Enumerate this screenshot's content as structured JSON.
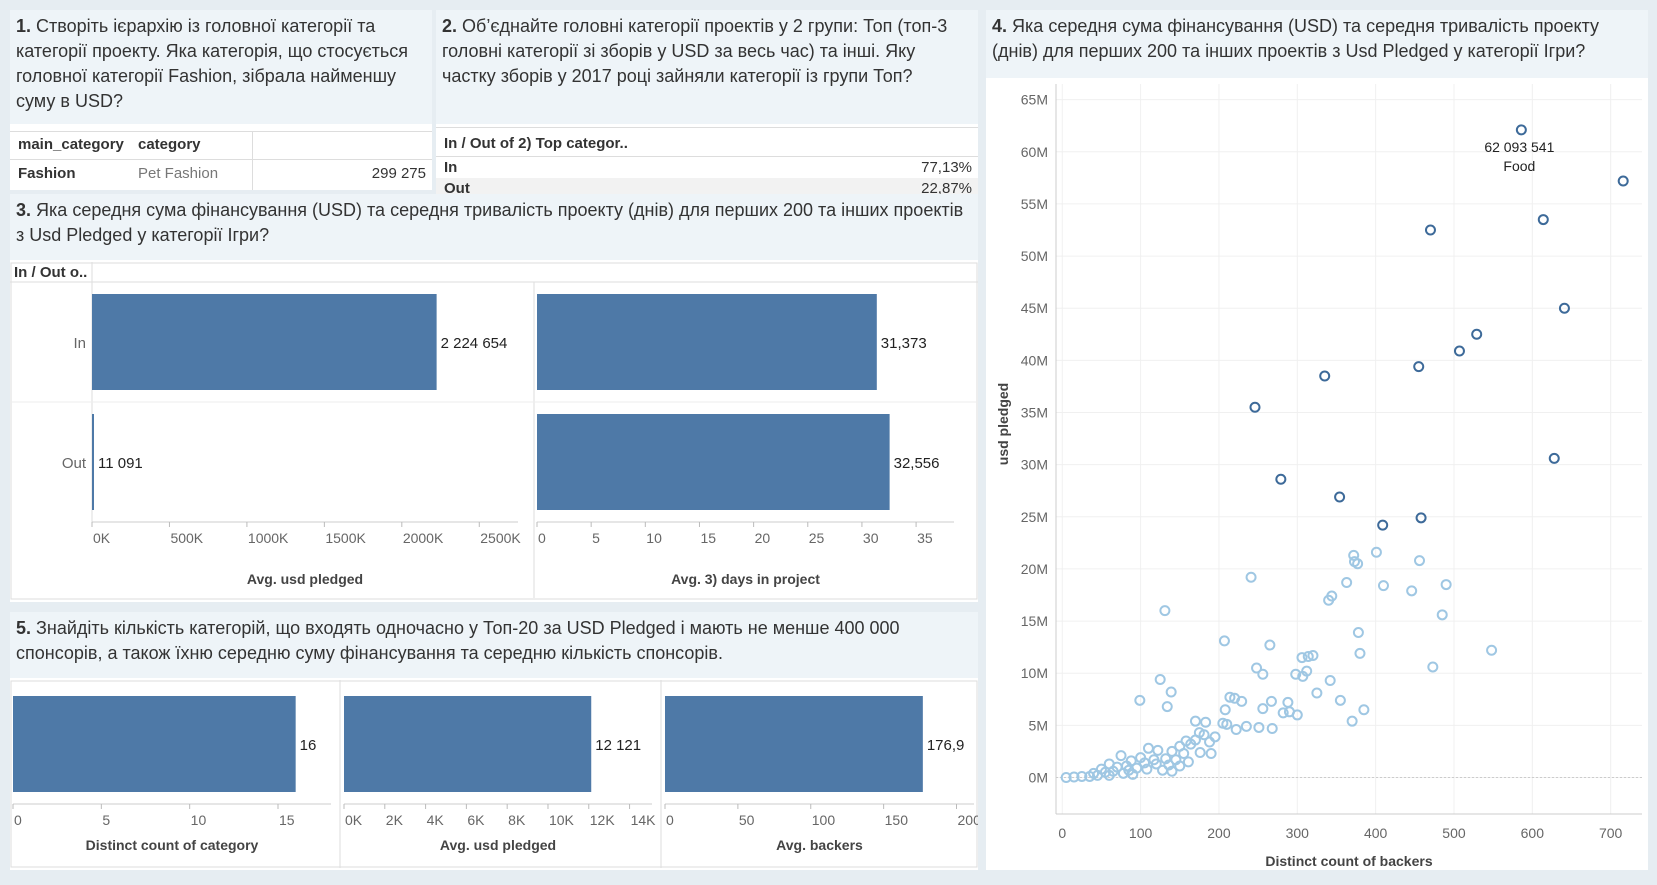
{
  "q1": {
    "num": "1.",
    "text": "Створіть ієрархію із головної категорії та категорії проекту. Яка категорія, що стосується головної категорії Fashion, зібрала найменшу суму в USD?",
    "headers": [
      "main_category",
      "category"
    ],
    "row": {
      "main_category": "Fashion",
      "category": "Pet Fashion",
      "value": "299 275"
    }
  },
  "q2": {
    "num": "2.",
    "text": "Об’єднайте головні категорії проектів у 2 групи: Топ (топ-3 головні категорії зі зборів у USD за весь час) та інші. Яку частку зборів у 2017 році зайняли категорії із групи Топ?",
    "header": "In / Out of 2) Top categor..",
    "rows": [
      {
        "label": "In",
        "value": "77,13%"
      },
      {
        "label": "Out",
        "value": "22,87%"
      }
    ]
  },
  "q3": {
    "num": "3.",
    "text": "Яка середня сума фінансування (USD) та середня тривалість проекту (днів) для перших 200 та інших проектів з Usd Pledged у категорії Ігри?",
    "row_header": "In / Out o.."
  },
  "q4": {
    "num": "4.",
    "text": "Яка середня сума фінансування (USD) та середня тривалість проекту (днів) для перших 200 та інших проектів з Usd Pledged у категорії Ігри?",
    "annotation_value": "62 093 541",
    "annotation_label": "Food"
  },
  "q5": {
    "num": "5.",
    "text": "Знайдіть кількість категорій, що входять одночасно у Топ-20 за USD Pledged і мають не менше 400 000 спонсорів, а також їхню середню суму фінансування та середню кількість спонсорів."
  },
  "colors": {
    "bar": "#4e79a7",
    "dark_point": "#3d6a99",
    "light_point": "#9fc7e3",
    "title_bg": "#eef4f8",
    "page_bg": "#e6edf2"
  },
  "chart_data": [
    {
      "id": "q3_pledged",
      "type": "bar",
      "orientation": "horizontal",
      "categories": [
        "In",
        "Out"
      ],
      "values": [
        2224654,
        11091
      ],
      "value_labels": [
        "2 224 654",
        "11 091"
      ],
      "xlabel": "Avg. usd pledged",
      "xlim": [
        0,
        2750000
      ],
      "ticks": [
        0,
        500000,
        1000000,
        1500000,
        2000000,
        2500000
      ],
      "tick_labels": [
        "0K",
        "500K",
        "1000K",
        "1500K",
        "2000K",
        "2500K"
      ]
    },
    {
      "id": "q3_days",
      "type": "bar",
      "orientation": "horizontal",
      "categories": [
        "In",
        "Out"
      ],
      "values": [
        31.373,
        32.556
      ],
      "value_labels": [
        "31,373",
        "32,556"
      ],
      "xlabel": "Avg. 3) days in project",
      "xlim": [
        0,
        38.5
      ],
      "ticks": [
        0,
        5,
        10,
        15,
        20,
        25,
        30,
        35
      ],
      "tick_labels": [
        "0",
        "5",
        "10",
        "15",
        "20",
        "25",
        "30",
        "35"
      ]
    },
    {
      "id": "q5_count",
      "type": "bar",
      "orientation": "horizontal",
      "values": [
        16
      ],
      "value_labels": [
        "16"
      ],
      "xlabel": "Distinct count of category",
      "xlim": [
        0,
        18
      ],
      "ticks": [
        0,
        5,
        10,
        15
      ],
      "tick_labels": [
        "0",
        "5",
        "10",
        "15"
      ]
    },
    {
      "id": "q5_pledged",
      "type": "bar",
      "orientation": "horizontal",
      "values": [
        12121
      ],
      "value_labels": [
        "12 121"
      ],
      "xlabel": "Avg. usd pledged",
      "xlim": [
        0,
        15100
      ],
      "ticks": [
        0,
        2000,
        4000,
        6000,
        8000,
        10000,
        12000,
        14000
      ],
      "tick_labels": [
        "0K",
        "2K",
        "4K",
        "6K",
        "8K",
        "10K",
        "12K",
        "14K"
      ]
    },
    {
      "id": "q5_backers",
      "type": "bar",
      "orientation": "horizontal",
      "values": [
        176.9
      ],
      "value_labels": [
        "176,9"
      ],
      "xlabel": "Avg. backers",
      "xlim": [
        0,
        212
      ],
      "ticks": [
        0,
        50,
        100,
        150,
        200
      ],
      "tick_labels": [
        "0",
        "50",
        "100",
        "150",
        "200"
      ]
    },
    {
      "id": "q4_scatter",
      "type": "scatter",
      "xlabel": "Distinct count of backers",
      "ylabel": "usd pledged",
      "xlim": [
        -8,
        740
      ],
      "ylim": [
        -3500000,
        66500000
      ],
      "xticks": [
        0,
        100,
        200,
        300,
        400,
        500,
        600,
        700
      ],
      "yticks": [
        0,
        5000000,
        10000000,
        15000000,
        20000000,
        25000000,
        30000000,
        35000000,
        40000000,
        45000000,
        50000000,
        55000000,
        60000000,
        65000000
      ],
      "ytick_labels": [
        "0M",
        "5M",
        "10M",
        "15M",
        "20M",
        "25M",
        "30M",
        "35M",
        "40M",
        "45M",
        "50M",
        "55M",
        "60M",
        "65M"
      ],
      "series": [
        {
          "group": "top",
          "points": [
            [
              586,
              62100000
            ],
            [
              716,
              57200000
            ],
            [
              470,
              52500000
            ],
            [
              614,
              53500000
            ],
            [
              641,
              45000000
            ],
            [
              529,
              42500000
            ],
            [
              507,
              40900000
            ],
            [
              455,
              39400000
            ],
            [
              335,
              38500000
            ],
            [
              246,
              35500000
            ],
            [
              628,
              30600000
            ],
            [
              279,
              28600000
            ],
            [
              354,
              26900000
            ],
            [
              409,
              24200000
            ],
            [
              458,
              24900000
            ]
          ]
        },
        {
          "group": "rest",
          "points": [
            [
              372,
              21300000
            ],
            [
              401,
              21600000
            ],
            [
              456,
              20800000
            ],
            [
              373,
              20700000
            ],
            [
              377,
              20500000
            ],
            [
              241,
              19200000
            ],
            [
              363,
              18700000
            ],
            [
              410,
              18400000
            ],
            [
              446,
              17900000
            ],
            [
              490,
              18500000
            ],
            [
              344,
              17400000
            ],
            [
              340,
              17000000
            ],
            [
              131,
              16000000
            ],
            [
              485,
              15600000
            ],
            [
              378,
              13900000
            ],
            [
              207,
              13100000
            ],
            [
              265,
              12700000
            ],
            [
              380,
              11900000
            ],
            [
              548,
              12200000
            ],
            [
              306,
              11500000
            ],
            [
              314,
              11600000
            ],
            [
              320,
              11700000
            ],
            [
              473,
              10600000
            ],
            [
              248,
              10500000
            ],
            [
              256,
              9900000
            ],
            [
              298,
              9900000
            ],
            [
              307,
              9700000
            ],
            [
              312,
              10200000
            ],
            [
              125,
              9400000
            ],
            [
              139,
              8200000
            ],
            [
              342,
              9300000
            ],
            [
              325,
              8100000
            ],
            [
              99,
              7400000
            ],
            [
              134,
              6800000
            ],
            [
              214,
              7700000
            ],
            [
              220,
              7600000
            ],
            [
              229,
              7300000
            ],
            [
              267,
              7300000
            ],
            [
              288,
              7200000
            ],
            [
              355,
              7400000
            ],
            [
              385,
              6500000
            ],
            [
              208,
              6500000
            ],
            [
              256,
              6600000
            ],
            [
              282,
              6200000
            ],
            [
              290,
              6300000
            ],
            [
              300,
              6000000
            ],
            [
              170,
              5400000
            ],
            [
              183,
              5300000
            ],
            [
              205,
              5200000
            ],
            [
              210,
              5100000
            ],
            [
              370,
              5400000
            ],
            [
              235,
              4900000
            ],
            [
              251,
              4800000
            ],
            [
              268,
              4700000
            ],
            [
              222,
              4600000
            ],
            [
              175,
              4300000
            ],
            [
              181,
              4100000
            ],
            [
              195,
              3900000
            ],
            [
              158,
              3500000
            ],
            [
              170,
              3600000
            ],
            [
              188,
              3400000
            ],
            [
              164,
              3200000
            ],
            [
              150,
              3000000
            ],
            [
              110,
              2800000
            ],
            [
              122,
              2600000
            ],
            [
              140,
              2500000
            ],
            [
              155,
              2300000
            ],
            [
              176,
              2400000
            ],
            [
              190,
              2300000
            ],
            [
              100,
              1900000
            ],
            [
              117,
              1700000
            ],
            [
              132,
              1800000
            ],
            [
              145,
              1700000
            ],
            [
              161,
              1500000
            ],
            [
              75,
              2100000
            ],
            [
              88,
              1600000
            ],
            [
              105,
              1400000
            ],
            [
              120,
              1300000
            ],
            [
              136,
              1200000
            ],
            [
              150,
              1100000
            ],
            [
              60,
              1300000
            ],
            [
              70,
              1000000
            ],
            [
              82,
              1100000
            ],
            [
              95,
              900000
            ],
            [
              108,
              800000
            ],
            [
              128,
              700000
            ],
            [
              50,
              800000
            ],
            [
              55,
              500000
            ],
            [
              65,
              600000
            ],
            [
              78,
              400000
            ],
            [
              90,
              300000
            ],
            [
              40,
              400000
            ],
            [
              45,
              200000
            ],
            [
              35,
              100000
            ],
            [
              25,
              100000
            ],
            [
              15,
              50000
            ],
            [
              5,
              0
            ],
            [
              60,
              200000
            ],
            [
              85,
              700000
            ],
            [
              140,
              600000
            ]
          ]
        }
      ]
    }
  ]
}
